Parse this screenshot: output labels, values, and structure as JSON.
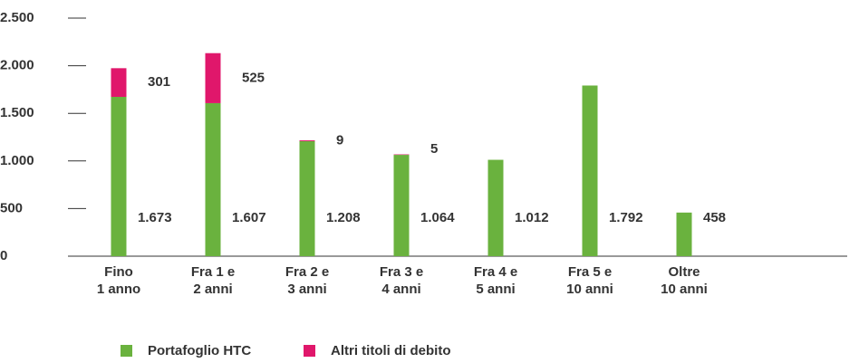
{
  "chart_data": {
    "type": "bar",
    "stacked": true,
    "categories": [
      "Fino\n1 anno",
      "Fra 1 e\n2 anni",
      "Fra 2 e\n3 anni",
      "Fra 3 e\n4 anni",
      "Fra 4 e\n5 anni",
      "Fra 5 e\n10 anni",
      "Oltre\n10 anni"
    ],
    "series": [
      {
        "name": "Portafoglio HTC",
        "color": "#6ab23e",
        "values": [
          1673,
          1607,
          1208,
          1064,
          1012,
          1792,
          458
        ],
        "value_labels": [
          "1.673",
          "1.607",
          "1.208",
          "1.064",
          "1.012",
          "1.792",
          "458"
        ]
      },
      {
        "name": "Altri titoli di debito",
        "color": "#e0176b",
        "values": [
          301,
          525,
          9,
          5,
          null,
          null,
          null
        ]
      }
    ],
    "ylim": [
      0,
      2500
    ],
    "yticks": [
      0,
      500,
      {
        "value": 1000,
        "label": "1.000"
      },
      {
        "value": 1500,
        "label": "1.500"
      },
      {
        "value": 2000,
        "label": "2.000"
      },
      {
        "value": 2500,
        "label": "2.500"
      }
    ],
    "legend": "bottom"
  }
}
